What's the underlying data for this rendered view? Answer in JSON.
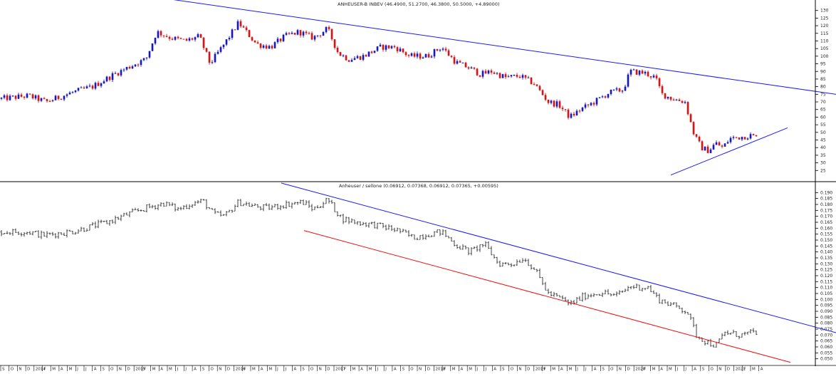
{
  "chart_data": [
    {
      "type": "candlestick",
      "title": "ANHEUSER-B INBEV (46.4900, 51.2700, 46.3800, 50.5000, +4.89000)",
      "ylim": [
        20,
        135
      ],
      "yticks": [
        25,
        30,
        35,
        40,
        45,
        50,
        55,
        60,
        65,
        70,
        75,
        80,
        85,
        90,
        95,
        100,
        105,
        110,
        115,
        120,
        125,
        130
      ],
      "up_color": "#1515cc",
      "down_color": "#dd1111",
      "grid": false,
      "price_path": [
        [
          0,
          72
        ],
        [
          40,
          74
        ],
        [
          65,
          70
        ],
        [
          100,
          76
        ],
        [
          130,
          80
        ],
        [
          160,
          88
        ],
        [
          190,
          95
        ],
        [
          205,
          98
        ],
        [
          220,
          116
        ],
        [
          240,
          112
        ],
        [
          260,
          110
        ],
        [
          280,
          113
        ],
        [
          295,
          95
        ],
        [
          315,
          108
        ],
        [
          335,
          122
        ],
        [
          360,
          108
        ],
        [
          380,
          106
        ],
        [
          400,
          113
        ],
        [
          420,
          116
        ],
        [
          440,
          112
        ],
        [
          460,
          118
        ],
        [
          475,
          102
        ],
        [
          490,
          98
        ],
        [
          510,
          100
        ],
        [
          535,
          106
        ],
        [
          555,
          106
        ],
        [
          575,
          100
        ],
        [
          600,
          100
        ],
        [
          620,
          106
        ],
        [
          640,
          96
        ],
        [
          660,
          92
        ],
        [
          675,
          88
        ],
        [
          690,
          90
        ],
        [
          710,
          86
        ],
        [
          730,
          87
        ],
        [
          750,
          82
        ],
        [
          770,
          70
        ],
        [
          785,
          68
        ],
        [
          800,
          60
        ],
        [
          815,
          65
        ],
        [
          835,
          70
        ],
        [
          855,
          76
        ],
        [
          875,
          78
        ],
        [
          885,
          90
        ],
        [
          905,
          89
        ],
        [
          920,
          86
        ],
        [
          930,
          75
        ],
        [
          945,
          72
        ],
        [
          962,
          70
        ],
        [
          975,
          48
        ],
        [
          985,
          40
        ],
        [
          995,
          38
        ],
        [
          1005,
          43
        ],
        [
          1015,
          40
        ],
        [
          1025,
          46
        ],
        [
          1040,
          47
        ],
        [
          1055,
          48
        ],
        [
          1065,
          46
        ]
      ],
      "trendlines": [
        {
          "color": "#1a1aff",
          "points": [
            [
              230,
              138
            ],
            [
              1174,
              75
            ]
          ]
        },
        {
          "color": "#1a1aff",
          "points": [
            [
              942,
              22
            ],
            [
              1106,
              53
            ]
          ]
        }
      ]
    },
    {
      "type": "ohlc",
      "title": "Anheuser / sellone (0.06912, 0.07368, 0.06912, 0.07365, +0.00595)",
      "ylim": [
        0.045,
        0.195
      ],
      "yticks": [
        0.05,
        0.055,
        0.06,
        0.065,
        0.07,
        0.075,
        0.08,
        0.085,
        0.09,
        0.095,
        0.1,
        0.105,
        0.11,
        0.115,
        0.12,
        0.125,
        0.13,
        0.135,
        0.14,
        0.145,
        0.15,
        0.155,
        0.16,
        0.165,
        0.17,
        0.175,
        0.18,
        0.185,
        0.19
      ],
      "bar_color": "#111111",
      "grid": false,
      "price_path": [
        [
          0,
          0.157
        ],
        [
          40,
          0.157
        ],
        [
          60,
          0.154
        ],
        [
          100,
          0.157
        ],
        [
          150,
          0.165
        ],
        [
          180,
          0.172
        ],
        [
          205,
          0.177
        ],
        [
          230,
          0.181
        ],
        [
          250,
          0.176
        ],
        [
          270,
          0.181
        ],
        [
          285,
          0.183
        ],
        [
          300,
          0.172
        ],
        [
          315,
          0.17
        ],
        [
          335,
          0.182
        ],
        [
          360,
          0.178
        ],
        [
          375,
          0.177
        ],
        [
          400,
          0.18
        ],
        [
          425,
          0.182
        ],
        [
          440,
          0.176
        ],
        [
          460,
          0.184
        ],
        [
          480,
          0.168
        ],
        [
          500,
          0.165
        ],
        [
          525,
          0.163
        ],
        [
          560,
          0.158
        ],
        [
          580,
          0.152
        ],
        [
          600,
          0.155
        ],
        [
          620,
          0.157
        ],
        [
          640,
          0.146
        ],
        [
          660,
          0.14
        ],
        [
          680,
          0.147
        ],
        [
          700,
          0.13
        ],
        [
          720,
          0.13
        ],
        [
          735,
          0.135
        ],
        [
          750,
          0.126
        ],
        [
          770,
          0.105
        ],
        [
          790,
          0.1
        ],
        [
          800,
          0.096
        ],
        [
          820,
          0.103
        ],
        [
          845,
          0.106
        ],
        [
          865,
          0.103
        ],
        [
          885,
          0.111
        ],
        [
          910,
          0.11
        ],
        [
          925,
          0.1
        ],
        [
          945,
          0.095
        ],
        [
          965,
          0.09
        ],
        [
          978,
          0.07
        ],
        [
          990,
          0.065
        ],
        [
          1005,
          0.061
        ],
        [
          1018,
          0.072
        ],
        [
          1040,
          0.07
        ],
        [
          1065,
          0.073
        ]
      ],
      "trendlines": [
        {
          "color": "#1a1aff",
          "points": [
            [
              395,
              0.198
            ],
            [
              1174,
              0.072
            ]
          ]
        },
        {
          "color": "#ee1111",
          "points": [
            [
              427,
              0.158
            ],
            [
              1110,
              0.047
            ]
          ]
        }
      ]
    }
  ],
  "date_axis": {
    "labels": [
      "S",
      "O",
      "N",
      "D",
      "2014",
      "F",
      "M",
      "A",
      "M",
      "J",
      "J",
      "A",
      "S",
      "O",
      "N",
      "D",
      "2015",
      "F",
      "M",
      "A",
      "M",
      "J",
      "J",
      "A",
      "S",
      "O",
      "N",
      "D",
      "2016",
      "F",
      "M",
      "A",
      "M",
      "J",
      "J",
      "A",
      "S",
      "O",
      "N",
      "D",
      "2017",
      "F",
      "M",
      "A",
      "M",
      "J",
      "J",
      "A",
      "S",
      "O",
      "N",
      "D",
      "2018",
      "F",
      "M",
      "A",
      "M",
      "J",
      "J",
      "A",
      "S",
      "O",
      "N",
      "D",
      "2019",
      "F",
      "M",
      "A",
      "M",
      "J",
      "J",
      "A",
      "S",
      "O",
      "N",
      "D",
      "2020",
      "F",
      "M",
      "A",
      "M",
      "J",
      "J",
      "A",
      "S",
      "O",
      "N",
      "D",
      "2021",
      "F",
      "M",
      "A"
    ]
  }
}
